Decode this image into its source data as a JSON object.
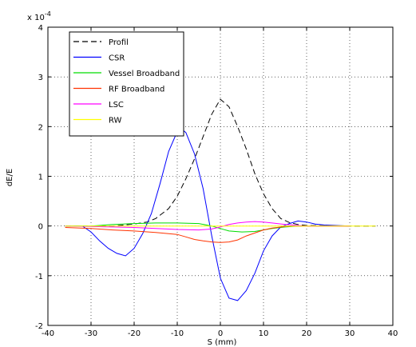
{
  "chart_data": {
    "type": "line",
    "title": "",
    "xlabel": "S (mm)",
    "ylabel": "dE/E",
    "y_scale_exponent_label": "x 10",
    "y_scale_exponent": "-4",
    "xlim": [
      -40,
      40
    ],
    "ylim": [
      -2,
      4
    ],
    "xticks": [
      -40,
      -30,
      -20,
      -10,
      0,
      10,
      20,
      30,
      40
    ],
    "yticks": [
      -2,
      -1,
      0,
      1,
      2,
      3,
      4
    ],
    "xtick_labels": [
      "-40",
      "-30",
      "-20",
      "-10",
      "0",
      "10",
      "20",
      "30",
      "40"
    ],
    "ytick_labels": [
      "-2",
      "-1",
      "0",
      "1",
      "2",
      "3",
      "4"
    ],
    "grid": true,
    "legend_position": "top-left",
    "series": [
      {
        "name": "Profil",
        "color": "#000000",
        "dash": "7,4",
        "x": [
          -36,
          -30,
          -25,
          -20,
          -17,
          -15,
          -12,
          -10,
          -8,
          -6,
          -4,
          -2,
          0,
          2,
          4,
          6,
          8,
          10,
          12,
          14,
          16,
          18,
          20,
          30,
          36
        ],
        "y": [
          0,
          0,
          0,
          0.04,
          0.08,
          0.15,
          0.35,
          0.6,
          0.95,
          1.35,
          1.8,
          2.25,
          2.55,
          2.4,
          2.0,
          1.55,
          1.05,
          0.65,
          0.35,
          0.15,
          0.07,
          0.03,
          0.01,
          0,
          0
        ]
      },
      {
        "name": "CSR",
        "color": "#0000ff",
        "dash": "",
        "x": [
          -36,
          -32,
          -30,
          -28,
          -26,
          -24,
          -22,
          -20,
          -18,
          -16,
          -14,
          -12,
          -10,
          -9,
          -8,
          -6,
          -4,
          -2,
          0,
          2,
          4,
          6,
          8,
          10,
          12,
          14,
          16,
          18,
          20,
          22,
          24,
          30
        ],
        "y": [
          0,
          0,
          -0.12,
          -0.3,
          -0.45,
          -0.55,
          -0.6,
          -0.45,
          -0.15,
          0.25,
          0.85,
          1.5,
          1.9,
          1.95,
          1.88,
          1.45,
          0.75,
          -0.2,
          -1.05,
          -1.45,
          -1.5,
          -1.3,
          -0.95,
          -0.5,
          -0.2,
          -0.02,
          0.05,
          0.1,
          0.08,
          0.04,
          0.02,
          0
        ]
      },
      {
        "name": "Vessel Broadband",
        "color": "#00dd00",
        "dash": "",
        "x": [
          -36,
          -30,
          -25,
          -20,
          -15,
          -10,
          -5,
          -2,
          0,
          2,
          5,
          8,
          10,
          12,
          15,
          18,
          20,
          25,
          30
        ],
        "y": [
          0,
          0,
          0.03,
          0.05,
          0.06,
          0.06,
          0.05,
          0.0,
          -0.05,
          -0.1,
          -0.12,
          -0.11,
          -0.08,
          -0.05,
          -0.02,
          0,
          0,
          0,
          0
        ]
      },
      {
        "name": "RF Broadband",
        "color": "#ff3300",
        "dash": "",
        "x": [
          -36,
          -30,
          -25,
          -20,
          -15,
          -10,
          -8,
          -6,
          -4,
          -2,
          0,
          2,
          4,
          6,
          8,
          10,
          12,
          15,
          18,
          20,
          25,
          30
        ],
        "y": [
          -0.03,
          -0.05,
          -0.08,
          -0.1,
          -0.13,
          -0.17,
          -0.22,
          -0.27,
          -0.3,
          -0.32,
          -0.33,
          -0.32,
          -0.28,
          -0.2,
          -0.14,
          -0.08,
          -0.04,
          -0.01,
          0,
          0,
          0,
          0
        ]
      },
      {
        "name": "LSC",
        "color": "#ff00ff",
        "dash": "",
        "x": [
          -36,
          -30,
          -25,
          -20,
          -15,
          -10,
          -5,
          -2,
          0,
          2,
          4,
          6,
          8,
          10,
          12,
          15,
          18,
          20,
          25,
          30
        ],
        "y": [
          0,
          -0.01,
          -0.02,
          -0.03,
          -0.05,
          -0.07,
          -0.08,
          -0.06,
          -0.02,
          0.03,
          0.06,
          0.08,
          0.09,
          0.08,
          0.06,
          0.03,
          0.01,
          0,
          0,
          0
        ]
      },
      {
        "name": "RW",
        "color": "#ffff00",
        "dash": "",
        "x": [
          -36,
          -20,
          -10,
          0,
          10,
          20,
          30,
          36
        ],
        "y": [
          0,
          0,
          0,
          0,
          0,
          0,
          0,
          0
        ]
      }
    ]
  }
}
